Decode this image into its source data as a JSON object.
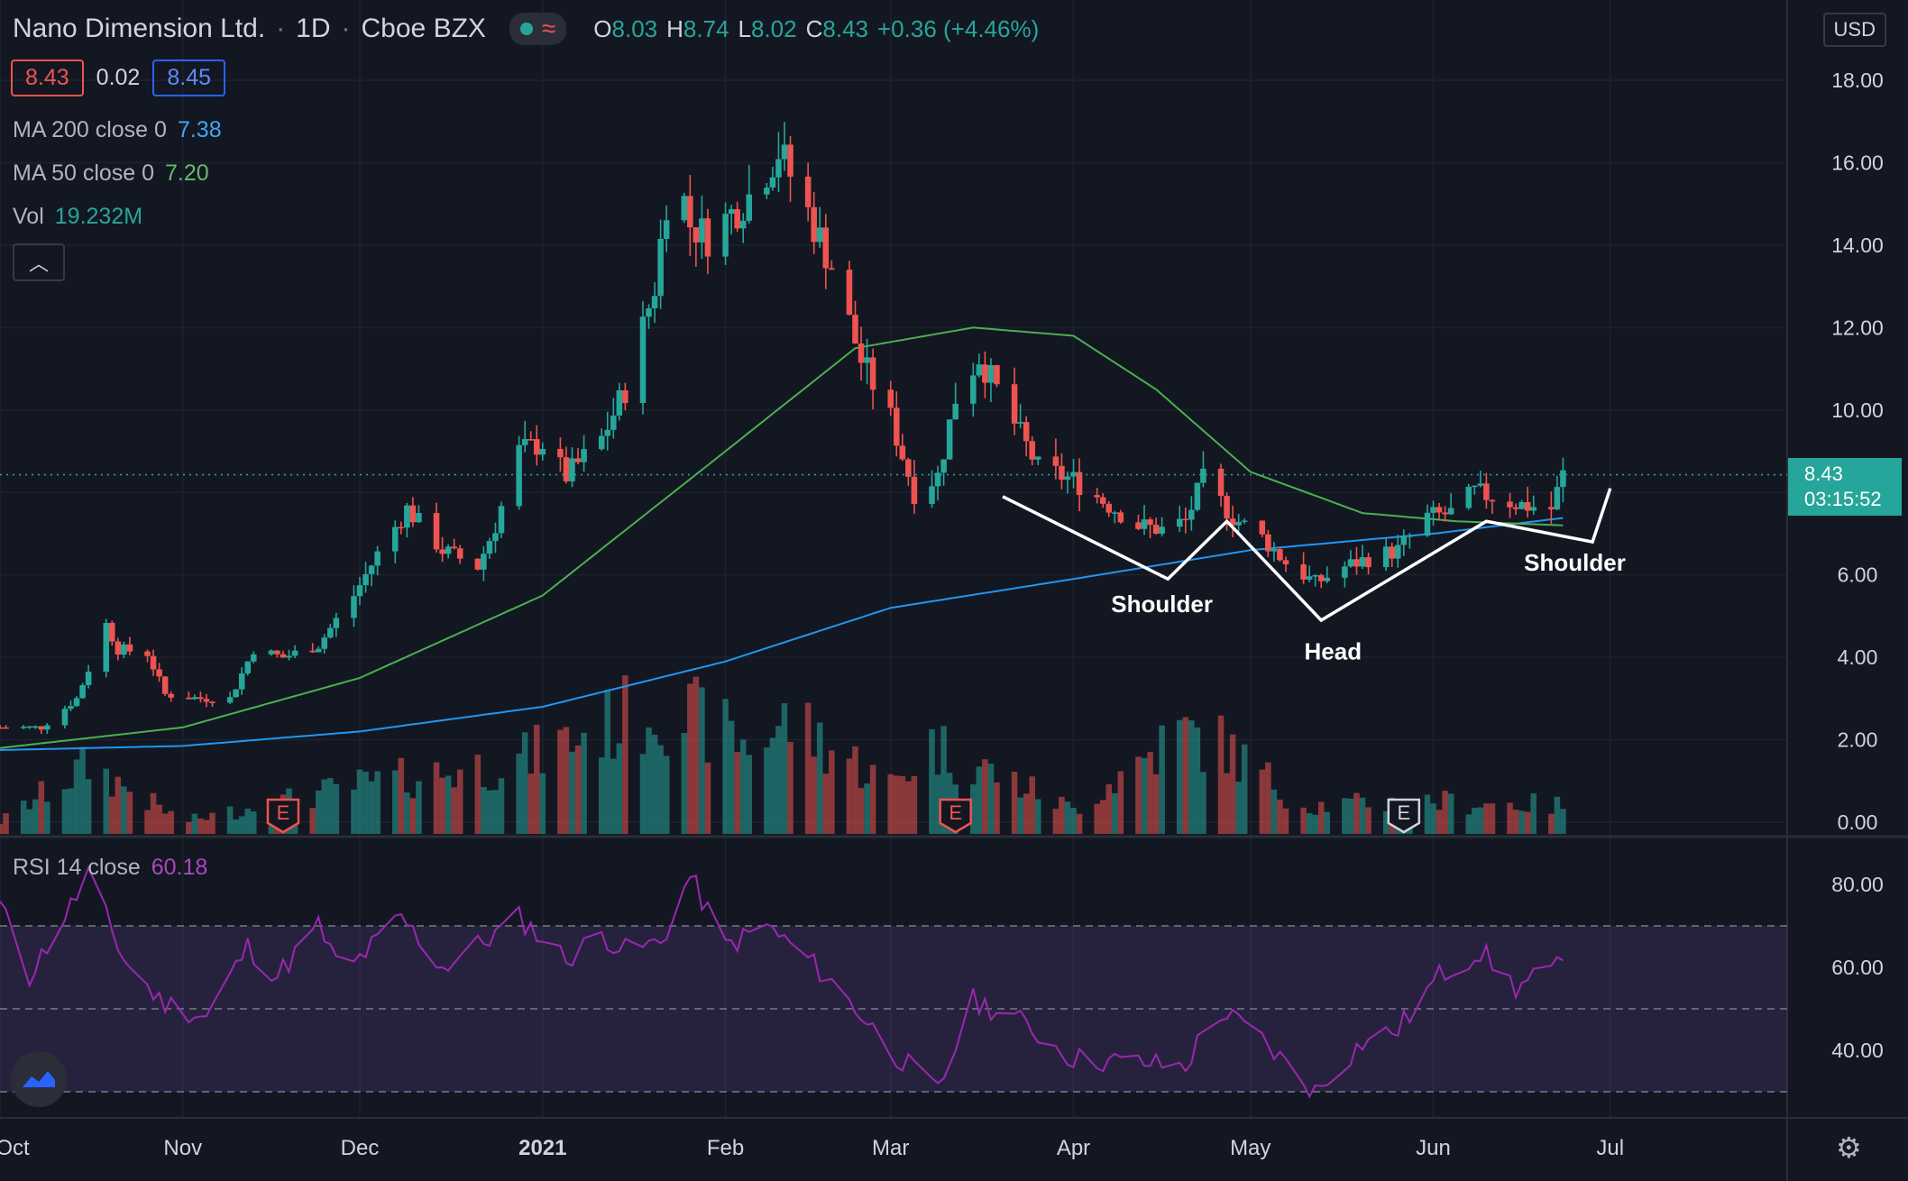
{
  "header": {
    "symbol": "Nano Dimension Ltd.",
    "interval": "1D",
    "exchange": "Cboe BZX",
    "ohlc": {
      "o_label": "O",
      "o": "8.03",
      "h_label": "H",
      "h": "8.74",
      "l_label": "L",
      "l": "8.02",
      "c_label": "C",
      "c": "8.43",
      "change": "+0.36 (+4.46%)"
    },
    "bid": "8.43",
    "spread": "0.02",
    "ask": "8.45",
    "currency": "USD"
  },
  "indicators": {
    "ma200": {
      "label": "MA 200 close 0",
      "value": "7.38",
      "color": "#2196f3"
    },
    "ma50": {
      "label": "MA 50 close 0",
      "value": "7.20",
      "color": "#4caf50"
    },
    "vol": {
      "label": "Vol",
      "value": "19.232M",
      "color": "#26a69a"
    },
    "rsi": {
      "label": "RSI 14 close",
      "value": "60.18",
      "color": "#9c27b0"
    }
  },
  "last_price": {
    "value": "8.43",
    "countdown": "03:15:52"
  },
  "colors": {
    "up": "#26a69a",
    "down": "#ef5350",
    "bg": "#131722",
    "grid": "#1e222d"
  },
  "chart_data": {
    "type": "candlestick",
    "price_axis": {
      "min": 0,
      "max": 18,
      "ticks": [
        "18.00",
        "16.00",
        "14.00",
        "12.00",
        "10.00",
        "8.00",
        "6.00",
        "4.00",
        "2.00",
        "0.00"
      ]
    },
    "rsi_axis": {
      "min": 25,
      "max": 85,
      "ticks": [
        "80.00",
        "60.00",
        "40.00"
      ],
      "bands": [
        70,
        50,
        30
      ]
    },
    "x_axis": {
      "start": "2020-10-01",
      "end": "2021-07-31",
      "ticks": [
        {
          "label": "Oct",
          "date": "2020-10-01"
        },
        {
          "label": "Nov",
          "date": "2020-11-01"
        },
        {
          "label": "Dec",
          "date": "2020-12-01"
        },
        {
          "label": "2021",
          "date": "2021-01-01"
        },
        {
          "label": "Feb",
          "date": "2021-02-01"
        },
        {
          "label": "Mar",
          "date": "2021-03-01"
        },
        {
          "label": "Apr",
          "date": "2021-04-01"
        },
        {
          "label": "May",
          "date": "2021-05-01"
        },
        {
          "label": "Jun",
          "date": "2021-06-01"
        },
        {
          "label": "Jul",
          "date": "2021-07-01"
        }
      ]
    },
    "close_path": [
      [
        "2020-10-01",
        2.3
      ],
      [
        "2020-10-08",
        2.3
      ],
      [
        "2020-10-14",
        3.0
      ],
      [
        "2020-10-19",
        4.8
      ],
      [
        "2020-10-21",
        4.2
      ],
      [
        "2020-10-26",
        4.1
      ],
      [
        "2020-10-29",
        3.1
      ],
      [
        "2020-11-04",
        3.0
      ],
      [
        "2020-11-09",
        3.0
      ],
      [
        "2020-11-13",
        4.2
      ],
      [
        "2020-11-18",
        4.0
      ],
      [
        "2020-11-24",
        4.3
      ],
      [
        "2020-11-30",
        5.5
      ],
      [
        "2020-12-04",
        6.5
      ],
      [
        "2020-12-09",
        7.6
      ],
      [
        "2020-12-15",
        6.6
      ],
      [
        "2020-12-21",
        6.2
      ],
      [
        "2020-12-24",
        7.2
      ],
      [
        "2020-12-28",
        9.0
      ],
      [
        "2021-01-01",
        9.2
      ],
      [
        "2021-01-05",
        8.4
      ],
      [
        "2021-01-11",
        9.3
      ],
      [
        "2021-01-15",
        10.5
      ],
      [
        "2021-01-20",
        13.0
      ],
      [
        "2021-01-23",
        16.2
      ],
      [
        "2021-01-26",
        14.5
      ],
      [
        "2021-01-29",
        14.2
      ],
      [
        "2021-02-05",
        15.2
      ],
      [
        "2021-02-10",
        16.3
      ],
      [
        "2021-02-15",
        14.8
      ],
      [
        "2021-02-19",
        13.5
      ],
      [
        "2021-02-24",
        11.2
      ],
      [
        "2021-03-01",
        9.8
      ],
      [
        "2021-03-05",
        8.0
      ],
      [
        "2021-03-09",
        8.4
      ],
      [
        "2021-03-12",
        10.3
      ],
      [
        "2021-03-16",
        11.3
      ],
      [
        "2021-03-20",
        10.2
      ],
      [
        "2021-03-26",
        8.6
      ],
      [
        "2021-04-01",
        8.3
      ],
      [
        "2021-04-06",
        7.8
      ],
      [
        "2021-04-12",
        7.2
      ],
      [
        "2021-04-16",
        7.1
      ],
      [
        "2021-04-20",
        7.3
      ],
      [
        "2021-04-23",
        8.3
      ],
      [
        "2021-04-28",
        7.4
      ],
      [
        "2021-05-03",
        6.9
      ],
      [
        "2021-05-07",
        6.3
      ],
      [
        "2021-05-12",
        5.8
      ],
      [
        "2021-05-17",
        6.2
      ],
      [
        "2021-05-21",
        6.4
      ],
      [
        "2021-05-26",
        6.6
      ],
      [
        "2021-05-31",
        7.4
      ],
      [
        "2021-06-04",
        7.5
      ],
      [
        "2021-06-08",
        8.0
      ],
      [
        "2021-06-11",
        7.9
      ],
      [
        "2021-06-16",
        7.7
      ],
      [
        "2021-06-21",
        7.6
      ],
      [
        "2021-06-23",
        8.43
      ]
    ],
    "candles": [
      [
        "2021-01-25",
        14.7,
        16.2,
        17.8,
        14.4
      ],
      [
        "2021-01-26",
        16.2,
        15.0,
        16.6,
        14.5
      ],
      [
        "2021-02-10",
        15.5,
        16.6,
        17.7,
        15.0
      ],
      [
        "2021-02-11",
        16.6,
        15.3,
        17.0,
        14.9
      ],
      [
        "2021-04-23",
        7.6,
        8.4,
        9.3,
        7.5
      ],
      [
        "2021-04-26",
        8.4,
        7.8,
        8.6,
        7.6
      ],
      [
        "2021-06-23",
        8.03,
        8.43,
        8.74,
        8.02
      ]
    ],
    "ma50_path": [
      [
        "2020-10-01",
        1.8
      ],
      [
        "2020-11-01",
        2.3
      ],
      [
        "2020-12-01",
        3.5
      ],
      [
        "2021-01-01",
        5.5
      ],
      [
        "2021-02-01",
        9.0
      ],
      [
        "2021-02-23",
        11.5
      ],
      [
        "2021-03-15",
        12.0
      ],
      [
        "2021-04-01",
        11.8
      ],
      [
        "2021-04-15",
        10.5
      ],
      [
        "2021-05-01",
        8.5
      ],
      [
        "2021-05-20",
        7.5
      ],
      [
        "2021-06-05",
        7.3
      ],
      [
        "2021-06-23",
        7.2
      ]
    ],
    "ma200_path": [
      [
        "2020-10-01",
        1.75
      ],
      [
        "2020-11-01",
        1.85
      ],
      [
        "2020-12-01",
        2.2
      ],
      [
        "2021-01-01",
        2.8
      ],
      [
        "2021-02-01",
        3.9
      ],
      [
        "2021-03-01",
        5.2
      ],
      [
        "2021-04-01",
        5.9
      ],
      [
        "2021-05-01",
        6.6
      ],
      [
        "2021-06-01",
        7.0
      ],
      [
        "2021-06-23",
        7.38
      ]
    ],
    "volume_path": [
      [
        "2020-10-01",
        0.3
      ],
      [
        "2020-10-16",
        1.7
      ],
      [
        "2020-11-01",
        0.3
      ],
      [
        "2020-12-01",
        1.2
      ],
      [
        "2020-12-28",
        1.8
      ],
      [
        "2021-01-21",
        3.2
      ],
      [
        "2021-02-05",
        2.2
      ],
      [
        "2021-02-12",
        2.8
      ],
      [
        "2021-03-01",
        1.2
      ],
      [
        "2021-03-08",
        2.2
      ],
      [
        "2021-04-01",
        0.6
      ],
      [
        "2021-04-19",
        2.5
      ],
      [
        "2021-04-26",
        2.2
      ],
      [
        "2021-05-10",
        0.7
      ],
      [
        "2021-06-01",
        0.8
      ],
      [
        "2021-06-23",
        0.7
      ]
    ],
    "rsi_path": [
      [
        "2020-10-01",
        75
      ],
      [
        "2020-10-06",
        58
      ],
      [
        "2020-10-16",
        82
      ],
      [
        "2020-10-22",
        62
      ],
      [
        "2020-10-28",
        52
      ],
      [
        "2020-11-05",
        48
      ],
      [
        "2020-11-12",
        65
      ],
      [
        "2020-11-17",
        58
      ],
      [
        "2020-11-24",
        70
      ],
      [
        "2020-11-28",
        58
      ],
      [
        "2020-12-08",
        72
      ],
      [
        "2020-12-15",
        60
      ],
      [
        "2020-12-24",
        68
      ],
      [
        "2020-12-28",
        72
      ],
      [
        "2021-01-05",
        62
      ],
      [
        "2021-01-11",
        68
      ],
      [
        "2021-01-15",
        64
      ],
      [
        "2021-01-21",
        66
      ],
      [
        "2021-01-26",
        82
      ],
      [
        "2021-02-01",
        65
      ],
      [
        "2021-02-08",
        70
      ],
      [
        "2021-02-15",
        62
      ],
      [
        "2021-02-22",
        52
      ],
      [
        "2021-03-01",
        40
      ],
      [
        "2021-03-09",
        30
      ],
      [
        "2021-03-15",
        52
      ],
      [
        "2021-03-22",
        48
      ],
      [
        "2021-04-01",
        38
      ],
      [
        "2021-04-12",
        37
      ],
      [
        "2021-04-20",
        36
      ],
      [
        "2021-04-25",
        50
      ],
      [
        "2021-05-01",
        45
      ],
      [
        "2021-05-12",
        30
      ],
      [
        "2021-05-20",
        42
      ],
      [
        "2021-05-26",
        45
      ],
      [
        "2021-06-02",
        58
      ],
      [
        "2021-06-09",
        64
      ],
      [
        "2021-06-15",
        55
      ],
      [
        "2021-06-19",
        58
      ],
      [
        "2021-06-23",
        60.18
      ]
    ],
    "pattern_lines": [
      [
        [
          "2021-03-20",
          7.9
        ],
        [
          "2021-04-17",
          5.9
        ],
        [
          "2021-04-27",
          7.3
        ],
        [
          "2021-05-13",
          4.9
        ],
        [
          "2021-06-10",
          7.3
        ],
        [
          "2021-06-28",
          6.8
        ],
        [
          "2021-07-01",
          8.1
        ]
      ]
    ],
    "annotations": [
      {
        "text": "Shoulder",
        "date": "2021-04-16",
        "price": 5.1
      },
      {
        "text": "Head",
        "date": "2021-05-15",
        "price": 3.95
      },
      {
        "text": "Shoulder",
        "date": "2021-06-25",
        "price": 6.1
      }
    ],
    "earnings_markers": [
      {
        "date": "2020-11-18",
        "label": "E"
      },
      {
        "date": "2021-03-12",
        "label": "E"
      },
      {
        "date": "2021-05-27",
        "label": "E"
      }
    ]
  }
}
